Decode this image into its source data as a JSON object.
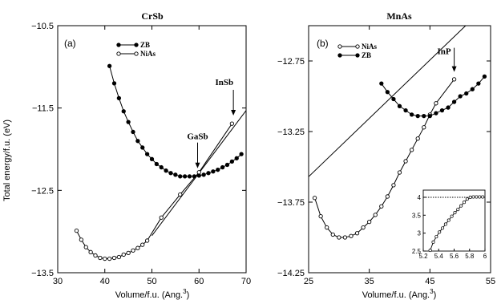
{
  "y_axis_label": "Total energy/f.u. (eV)",
  "chart_data": [
    {
      "type": "line",
      "title": "CrSb",
      "panel_label": "(a)",
      "xlabel": "Volume/f.u. (Ang.",
      "xlabel_sup": "3",
      "xlabel_tail": ")",
      "xlim": [
        30,
        70
      ],
      "ylim": [
        -13.5,
        -10.5
      ],
      "xticks": [
        30,
        40,
        50,
        60,
        70
      ],
      "yticks": [
        -13.5,
        -12.5,
        -11.5,
        -10.5
      ],
      "xtick_labels": [
        "30",
        "40",
        "50",
        "60",
        "70"
      ],
      "ytick_labels": [
        "−13.5",
        "−12.5",
        "−11.5",
        "−10.5"
      ],
      "series": [
        {
          "name": "ZB",
          "marker": "filled",
          "x": [
            41,
            42,
            43,
            44,
            45,
            46,
            47,
            48,
            49,
            50,
            51,
            52,
            53,
            54,
            55,
            56,
            57,
            58,
            59,
            60,
            61,
            62,
            63,
            64,
            65,
            66,
            67,
            68,
            69
          ],
          "y": [
            -10.99,
            -11.2,
            -11.38,
            -11.54,
            -11.67,
            -11.79,
            -11.9,
            -11.98,
            -12.06,
            -12.12,
            -12.18,
            -12.22,
            -12.26,
            -12.29,
            -12.31,
            -12.33,
            -12.33,
            -12.33,
            -12.33,
            -12.32,
            -12.31,
            -12.29,
            -12.27,
            -12.25,
            -12.22,
            -12.19,
            -12.15,
            -12.11,
            -12.06
          ]
        },
        {
          "name": "NiAs",
          "marker": "open",
          "x": [
            34,
            35,
            36,
            37,
            38,
            39,
            40,
            41,
            42,
            43,
            44,
            45,
            46,
            47,
            48,
            49,
            52,
            56,
            60,
            67
          ],
          "y": [
            -12.99,
            -13.1,
            -13.19,
            -13.25,
            -13.29,
            -13.32,
            -13.33,
            -13.33,
            -13.32,
            -13.31,
            -13.28,
            -13.26,
            -13.23,
            -13.2,
            -13.16,
            -13.11,
            -12.83,
            -12.55,
            -12.28,
            -11.69
          ]
        }
      ],
      "fit_line": [
        [
          50,
          -13.05
        ],
        [
          70,
          -11.53
        ]
      ],
      "annotations": [
        {
          "text": "GaSb",
          "x": 59.7,
          "y": -12.27
        },
        {
          "text": "InSb",
          "x": 67.3,
          "y": -11.63
        }
      ]
    },
    {
      "type": "line",
      "title": "MnAs",
      "panel_label": "(b)",
      "xlabel": "Volume/f.u. (Ang.",
      "xlabel_sup": "3",
      "xlabel_tail": ")",
      "xlim": [
        25,
        55
      ],
      "ylim": [
        -14.25,
        -12.5
      ],
      "xticks": [
        25,
        35,
        45,
        55
      ],
      "yticks": [
        -14.25,
        -13.75,
        -13.25,
        -12.75
      ],
      "xtick_labels": [
        "25",
        "35",
        "45",
        "55"
      ],
      "ytick_labels": [
        "−14.25",
        "−13.75",
        "−13.25",
        "−12.75"
      ],
      "series": [
        {
          "name": "NiAs",
          "marker": "open",
          "x": [
            26,
            27,
            28,
            29,
            30,
            31,
            32,
            33,
            34,
            35,
            36,
            37,
            38,
            39,
            40,
            41,
            42,
            43,
            44,
            45,
            46,
            49
          ],
          "y": [
            -13.72,
            -13.85,
            -13.93,
            -13.98,
            -14.0,
            -14.0,
            -13.99,
            -13.97,
            -13.93,
            -13.89,
            -13.84,
            -13.78,
            -13.71,
            -13.63,
            -13.54,
            -13.46,
            -13.38,
            -13.3,
            -13.22,
            -13.13,
            -13.05,
            -12.88
          ]
        },
        {
          "name": "ZB",
          "marker": "filled",
          "x": [
            37,
            38,
            39,
            40,
            41,
            42,
            43,
            44,
            45,
            46,
            47,
            48,
            49,
            50,
            51,
            52,
            53,
            54
          ],
          "y": [
            -12.91,
            -12.97,
            -13.02,
            -13.07,
            -13.1,
            -13.13,
            -13.14,
            -13.14,
            -13.14,
            -13.12,
            -13.1,
            -13.08,
            -13.04,
            -13.0,
            -12.98,
            -12.95,
            -12.91,
            -12.86
          ]
        }
      ],
      "fit_line": [
        [
          25,
          -13.57
        ],
        [
          55,
          -12.33
        ]
      ],
      "annotations": [
        {
          "text": "InP",
          "x": 49,
          "y": -12.85
        }
      ],
      "inset": {
        "xlim": [
          5.2,
          6
        ],
        "ylim": [
          2.5,
          4.2
        ],
        "xticks": [
          5.2,
          5.4,
          5.6,
          5.8,
          6
        ],
        "yticks": [
          2.5,
          3,
          3.5,
          4
        ],
        "xtick_labels": [
          "5.2",
          "5.4",
          "5.6",
          "5.8",
          "6"
        ],
        "ytick_labels": [
          "2.5",
          "3",
          "3.5",
          "4"
        ],
        "x": [
          5.29,
          5.33,
          5.37,
          5.41,
          5.45,
          5.49,
          5.53,
          5.57,
          5.61,
          5.65,
          5.69,
          5.73,
          5.77,
          5.81,
          5.85,
          5.89,
          5.93,
          5.97
        ],
        "y": [
          2.52,
          2.75,
          2.9,
          3.03,
          3.14,
          3.25,
          3.36,
          3.47,
          3.57,
          3.66,
          3.76,
          3.86,
          3.95,
          4.0,
          4.01,
          4.01,
          4.01,
          4.01
        ],
        "reference_y": 4.0
      }
    }
  ]
}
